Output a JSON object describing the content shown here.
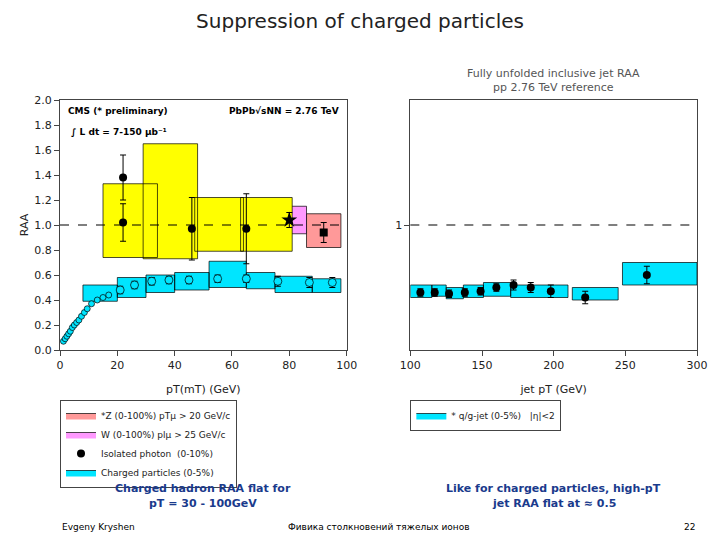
{
  "title": "Suppression of charged particles",
  "annotations": [
    "Evgeny Kryshen",
    "Фивика столкновений тяжелых ионов",
    "22"
  ],
  "chart_data": [
    {
      "type": "scatter",
      "xlabel": "pT(mT) (GeV)",
      "ylabel": "RAA",
      "xlim": [
        0,
        100
      ],
      "ylim": [
        0,
        2.0
      ],
      "xticks": [
        0,
        20,
        40,
        60,
        80,
        100
      ],
      "yticks": [
        {
          "value": 0,
          "label": "0.0"
        },
        0.2,
        0.4,
        0.6,
        0.8,
        {
          "value": 1.0,
          "label": "1.0"
        },
        1.2,
        1.4,
        1.6,
        1.8,
        {
          "value": 2.0,
          "label": "2.0"
        }
      ],
      "grid": false,
      "annotations": [
        "CMS (* preliminary)",
        "PbPb√sNN = 2.76 TeV",
        "∫ L dt = 7-150 μb⁻¹",
        "Charged hadron RAA flat for",
        "pT = 30 - 100GeV"
      ],
      "series": [
        {
          "name": "*Z (0-100%) pTμ > 20 GeV/c",
          "type": "band",
          "color": "#FF9999",
          "x": [
            86
          ],
          "width": [
            12
          ],
          "low": [
            0.82
          ],
          "high": [
            1.09
          ]
        },
        {
          "type": "scatter",
          "marker": "square",
          "color": "black",
          "x": [
            92
          ],
          "values": [
            0.94
          ],
          "errors": [
            0.08
          ]
        },
        {
          "name": "W (0-100%) plμ > 25 GeV/c",
          "type": "band",
          "color": "#FF99FF",
          "x": [
            74
          ],
          "width": [
            12
          ],
          "low": [
            0.93
          ],
          "high": [
            1.15
          ]
        },
        {
          "type": "scatter",
          "marker": "star",
          "color": "black",
          "x": [
            80
          ],
          "values": [
            1.04
          ],
          "errors": [
            0.06
          ]
        },
        {
          "name": "Isolated photon  (0-10%)",
          "type": "scatter",
          "marker": "circle",
          "color": "black",
          "x": [
            22,
            46,
            65,
            22
          ],
          "values": [
            1.38,
            0.97,
            0.97,
            1.02
          ],
          "errors": [
            0.18,
            0.25,
            0.28,
            0.15
          ]
        },
        {
          "type": "band",
          "color": "yellow",
          "x": [
            15,
            29,
            47,
            63
          ],
          "width": [
            19,
            19,
            17,
            18
          ],
          "low": [
            0.74,
            0.73,
            0.79,
            0.79
          ],
          "high": [
            1.33,
            1.65,
            1.22,
            1.22
          ]
        },
        {
          "name": "Charged particles (0-5%)",
          "type": "band",
          "color": "#00E5FF",
          "x": [
            8,
            20,
            30,
            40,
            52,
            65,
            75,
            88
          ],
          "width": [
            12,
            10,
            10,
            12,
            13,
            10,
            13,
            10
          ],
          "low": [
            0.39,
            0.42,
            0.46,
            0.48,
            0.5,
            0.49,
            0.46,
            0.46
          ],
          "high": [
            0.52,
            0.58,
            0.6,
            0.62,
            0.71,
            0.62,
            0.59,
            0.57
          ]
        },
        {
          "type": "scatter",
          "marker": "circle",
          "color": "#00E5FF",
          "x": [
            1.2,
            1.8,
            2.4,
            3.0,
            3.6,
            4.3,
            5.0,
            5.8,
            6.6,
            7.5,
            8.5,
            9.5,
            11,
            13,
            15,
            17,
            21,
            26,
            32,
            38,
            45,
            55,
            65,
            76,
            87,
            95
          ],
          "values": [
            0.07,
            0.09,
            0.11,
            0.13,
            0.15,
            0.18,
            0.2,
            0.22,
            0.24,
            0.27,
            0.3,
            0.33,
            0.37,
            0.4,
            0.42,
            0.44,
            0.48,
            0.52,
            0.55,
            0.56,
            0.56,
            0.57,
            0.57,
            0.55,
            0.54,
            0.54
          ],
          "errors": [
            null,
            null,
            null,
            null,
            null,
            null,
            null,
            null,
            null,
            null,
            null,
            null,
            null,
            null,
            null,
            null,
            0.03,
            0.03,
            0.03,
            0.03,
            0.03,
            0.03,
            0.03,
            0.04,
            0.04,
            0.04
          ]
        },
        {
          "type": "hline",
          "color": "black",
          "line_style": "dashed",
          "values": [
            1.0
          ]
        }
      ]
    },
    {
      "type": "scatter",
      "title": "Fully unfolded inclusive jet RAA",
      "subtitle": "pp 2.76 TeV reference",
      "xlabel": "jet pT (GeV)",
      "xlim": [
        100,
        300
      ],
      "ylim": [
        0,
        2.0
      ],
      "xticks": [
        100,
        150,
        200,
        250,
        300
      ],
      "yticks": [
        1
      ],
      "grid": false,
      "annotations": [
        "Like for charged particles, high-pT",
        "jet RAA flat at ≈ 0.5"
      ],
      "series": [
        {
          "name": "* q/g-jet (0-5%)   |η|<2",
          "type": "band",
          "color": "#00E5FF",
          "x": [
            100,
            115,
            125,
            137,
            151,
            170,
            213,
            248
          ],
          "width": [
            15,
            10,
            12,
            14,
            19,
            40,
            32,
            52
          ],
          "low": [
            0.42,
            0.43,
            0.41,
            0.42,
            0.43,
            0.42,
            0.4,
            0.52
          ],
          "high": [
            0.52,
            0.52,
            0.5,
            0.52,
            0.54,
            0.52,
            0.5,
            0.7
          ]
        },
        {
          "type": "scatter",
          "marker": "circle",
          "color": "black",
          "x": [
            107,
            117,
            127,
            138,
            149,
            160,
            172,
            184,
            198,
            222,
            265
          ],
          "values": [
            0.46,
            0.46,
            0.45,
            0.46,
            0.47,
            0.5,
            0.52,
            0.5,
            0.47,
            0.42,
            0.6
          ],
          "errors": [
            0.03,
            0.03,
            0.03,
            0.03,
            0.03,
            0.03,
            0.04,
            0.04,
            0.05,
            0.05,
            0.07
          ]
        },
        {
          "type": "hline",
          "color": "black",
          "line_style": "dashed",
          "values": [
            1.0
          ]
        }
      ]
    }
  ]
}
